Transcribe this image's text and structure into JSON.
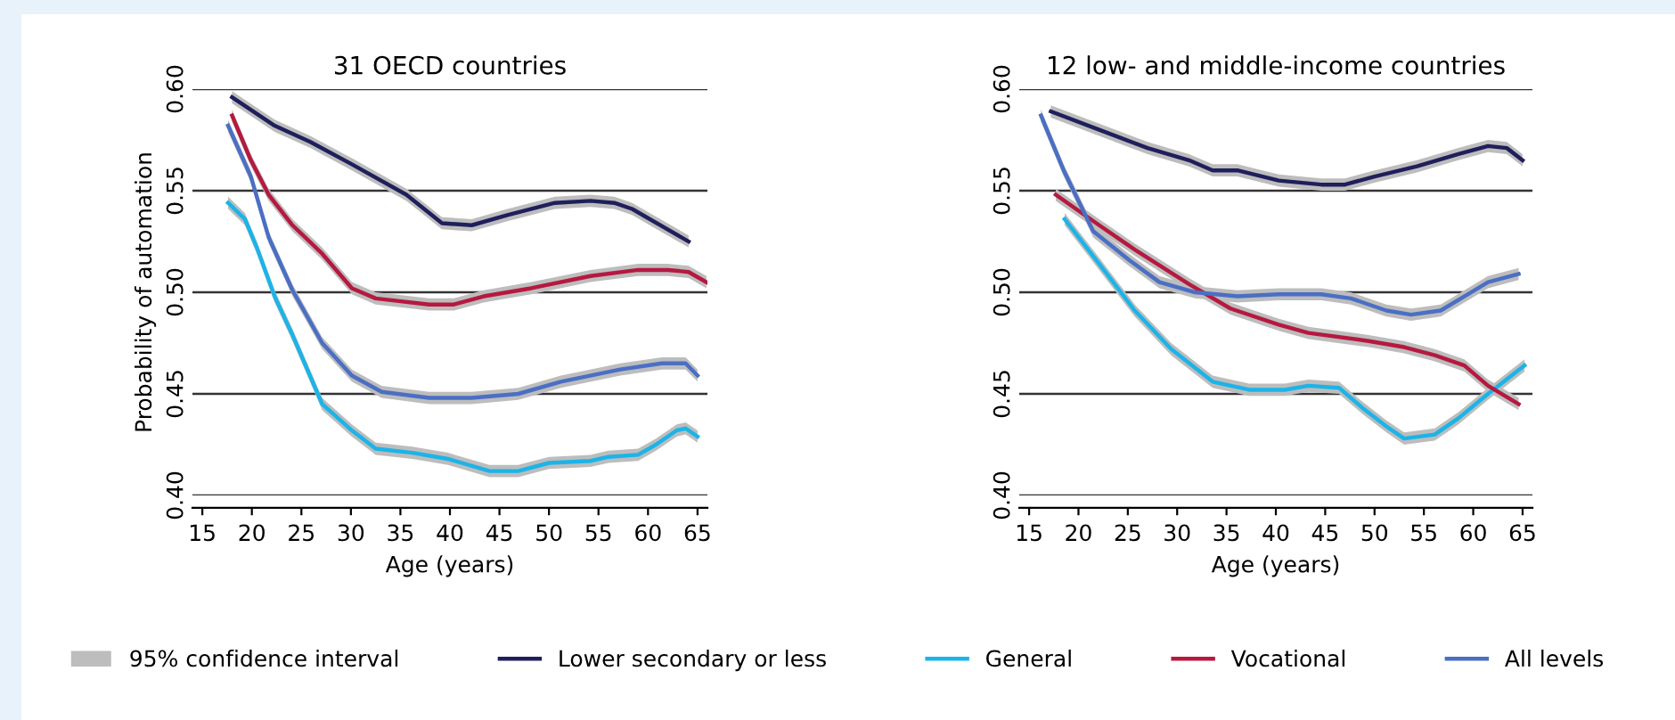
{
  "chart_data": [
    {
      "type": "line",
      "title": "31 OECD countries",
      "xlabel": "Age (years)",
      "ylabel": "Probability of automation",
      "xlim": [
        14,
        66
      ],
      "xticks": [
        15,
        20,
        25,
        30,
        35,
        40,
        45,
        50,
        55,
        60,
        65
      ],
      "ylim": [
        0.4,
        0.6
      ],
      "yticks": [
        {
          "value": 0.4,
          "label": "0.40"
        },
        {
          "value": 0.45,
          "label": "0.45"
        },
        {
          "value": 0.5,
          "label": "0.50"
        },
        {
          "value": 0.55,
          "label": "0.55"
        },
        {
          "value": 0.6,
          "label": "0.60"
        }
      ],
      "grid": "y",
      "legend": "bottom",
      "annotations": [
        "95% confidence interval"
      ],
      "series": [
        {
          "name": "Lower secondary or less",
          "color": "#1f1f5c",
          "x": [
            18.0,
            22.3,
            25.9,
            30.1,
            35.6,
            39.2,
            42.2,
            45.8,
            50.6,
            54.2,
            56.6,
            58.4,
            64.1
          ],
          "values": [
            0.596,
            0.582,
            0.574,
            0.563,
            0.548,
            0.534,
            0.533,
            0.538,
            0.544,
            0.545,
            0.544,
            0.541,
            0.525
          ],
          "lower": [
            0.593,
            0.579,
            0.571,
            0.56,
            0.545,
            0.531,
            0.53,
            0.535,
            0.541,
            0.542,
            0.541,
            0.538,
            0.522
          ],
          "upper": [
            0.599,
            0.585,
            0.577,
            0.566,
            0.551,
            0.537,
            0.536,
            0.541,
            0.547,
            0.548,
            0.547,
            0.544,
            0.528
          ]
        },
        {
          "name": "General",
          "color": "#1bb4e8",
          "x": [
            17.6,
            19.3,
            20.5,
            22.3,
            24.1,
            27.1,
            30.1,
            32.5,
            36.2,
            39.8,
            44.0,
            46.9,
            50.0,
            54.2,
            56.0,
            59.0,
            60.8,
            62.9,
            63.8,
            65.0
          ],
          "values": [
            0.544,
            0.536,
            0.522,
            0.498,
            0.479,
            0.445,
            0.432,
            0.423,
            0.421,
            0.418,
            0.412,
            0.412,
            0.416,
            0.417,
            0.419,
            0.42,
            0.425,
            0.432,
            0.433,
            0.429
          ],
          "lower": [
            0.541,
            0.533,
            0.519,
            0.495,
            0.476,
            0.442,
            0.429,
            0.42,
            0.418,
            0.415,
            0.409,
            0.409,
            0.413,
            0.414,
            0.416,
            0.417,
            0.422,
            0.429,
            0.43,
            0.426
          ],
          "upper": [
            0.547,
            0.539,
            0.525,
            0.501,
            0.482,
            0.448,
            0.435,
            0.426,
            0.424,
            0.421,
            0.415,
            0.415,
            0.419,
            0.42,
            0.422,
            0.423,
            0.428,
            0.435,
            0.436,
            0.432
          ]
        },
        {
          "name": "Vocational",
          "color": "#b5193f",
          "x": [
            18.0,
            19.9,
            21.7,
            24.1,
            27.1,
            30.1,
            32.5,
            37.9,
            40.4,
            43.4,
            48.2,
            54.2,
            59.0,
            62.0,
            64.1,
            65.9
          ],
          "values": [
            0.587,
            0.565,
            0.548,
            0.533,
            0.519,
            0.502,
            0.497,
            0.494,
            0.494,
            0.498,
            0.502,
            0.508,
            0.511,
            0.511,
            0.51,
            0.505
          ],
          "lower": [
            0.584,
            0.562,
            0.545,
            0.53,
            0.516,
            0.499,
            0.494,
            0.491,
            0.491,
            0.495,
            0.499,
            0.505,
            0.508,
            0.508,
            0.507,
            0.502
          ],
          "upper": [
            0.59,
            0.568,
            0.551,
            0.536,
            0.522,
            0.505,
            0.5,
            0.497,
            0.497,
            0.501,
            0.505,
            0.511,
            0.514,
            0.514,
            0.513,
            0.508
          ]
        },
        {
          "name": "All levels",
          "color": "#4a6fc4",
          "x": [
            17.6,
            19.9,
            21.7,
            24.1,
            27.1,
            30.1,
            33.1,
            37.9,
            42.2,
            46.9,
            51.2,
            57.2,
            61.4,
            63.8,
            65.0
          ],
          "values": [
            0.582,
            0.557,
            0.527,
            0.501,
            0.475,
            0.459,
            0.451,
            0.448,
            0.448,
            0.45,
            0.456,
            0.462,
            0.465,
            0.465,
            0.459
          ],
          "lower": [
            0.579,
            0.554,
            0.524,
            0.498,
            0.472,
            0.456,
            0.448,
            0.445,
            0.445,
            0.447,
            0.453,
            0.459,
            0.462,
            0.462,
            0.456
          ],
          "upper": [
            0.585,
            0.56,
            0.53,
            0.504,
            0.478,
            0.462,
            0.454,
            0.451,
            0.451,
            0.453,
            0.459,
            0.465,
            0.468,
            0.468,
            0.462
          ]
        }
      ]
    },
    {
      "type": "line",
      "title": "12 low- and middle-income countries",
      "xlabel": "Age (years)",
      "xlim": [
        14,
        66
      ],
      "xticks": [
        15,
        20,
        25,
        30,
        35,
        40,
        45,
        50,
        55,
        60,
        65
      ],
      "ylim": [
        0.4,
        0.6
      ],
      "yticks": [
        {
          "value": 0.4,
          "label": "0.40"
        },
        {
          "value": 0.45,
          "label": "0.45"
        },
        {
          "value": 0.5,
          "label": "0.50"
        },
        {
          "value": 0.55,
          "label": "0.55"
        },
        {
          "value": 0.6,
          "label": "0.60"
        }
      ],
      "grid": "y",
      "series": [
        {
          "name": "Lower secondary or less",
          "color": "#1f1f5c",
          "x": [
            17.2,
            22.1,
            27.0,
            31.2,
            33.6,
            36.1,
            40.3,
            44.6,
            47.0,
            50.0,
            54.3,
            58.5,
            61.5,
            63.4,
            65.0
          ],
          "values": [
            0.589,
            0.58,
            0.571,
            0.565,
            0.56,
            0.56,
            0.555,
            0.553,
            0.553,
            0.557,
            0.562,
            0.568,
            0.572,
            0.571,
            0.565
          ],
          "lower": [
            0.586,
            0.577,
            0.568,
            0.562,
            0.557,
            0.557,
            0.552,
            0.55,
            0.55,
            0.554,
            0.559,
            0.565,
            0.569,
            0.568,
            0.562
          ],
          "upper": [
            0.592,
            0.583,
            0.574,
            0.568,
            0.563,
            0.563,
            0.558,
            0.556,
            0.556,
            0.56,
            0.565,
            0.571,
            0.575,
            0.574,
            0.568
          ]
        },
        {
          "name": "General",
          "color": "#1bb4e8",
          "x": [
            18.6,
            22.1,
            25.7,
            29.4,
            33.6,
            37.3,
            40.9,
            43.3,
            46.4,
            48.8,
            51.2,
            53.0,
            56.1,
            58.5,
            61.5,
            65.2
          ],
          "values": [
            0.536,
            0.514,
            0.491,
            0.472,
            0.456,
            0.452,
            0.452,
            0.454,
            0.453,
            0.443,
            0.434,
            0.428,
            0.43,
            0.438,
            0.45,
            0.464
          ],
          "lower": [
            0.533,
            0.511,
            0.488,
            0.469,
            0.453,
            0.449,
            0.449,
            0.451,
            0.45,
            0.44,
            0.431,
            0.425,
            0.427,
            0.435,
            0.447,
            0.461
          ],
          "upper": [
            0.539,
            0.517,
            0.494,
            0.475,
            0.459,
            0.455,
            0.455,
            0.457,
            0.456,
            0.446,
            0.437,
            0.431,
            0.433,
            0.441,
            0.453,
            0.467
          ]
        },
        {
          "name": "Vocational",
          "color": "#b5193f",
          "x": [
            17.7,
            22.1,
            25.7,
            31.2,
            35.4,
            40.3,
            43.3,
            49.4,
            53.0,
            56.1,
            59.1,
            61.5,
            64.6
          ],
          "values": [
            0.548,
            0.533,
            0.521,
            0.504,
            0.492,
            0.484,
            0.48,
            0.476,
            0.473,
            0.469,
            0.464,
            0.454,
            0.445
          ],
          "lower": [
            0.545,
            0.53,
            0.518,
            0.501,
            0.489,
            0.481,
            0.477,
            0.473,
            0.47,
            0.466,
            0.461,
            0.451,
            0.442
          ],
          "upper": [
            0.551,
            0.536,
            0.524,
            0.507,
            0.495,
            0.487,
            0.483,
            0.479,
            0.476,
            0.472,
            0.467,
            0.457,
            0.448
          ]
        },
        {
          "name": "All levels",
          "color": "#4a6fc4",
          "x": [
            16.2,
            18.5,
            21.5,
            25.1,
            28.2,
            31.8,
            36.1,
            40.3,
            44.6,
            47.6,
            51.2,
            53.7,
            56.7,
            59.1,
            61.5,
            64.6
          ],
          "values": [
            0.587,
            0.56,
            0.53,
            0.516,
            0.505,
            0.5,
            0.498,
            0.499,
            0.499,
            0.497,
            0.491,
            0.489,
            0.491,
            0.498,
            0.505,
            0.509
          ],
          "lower": [
            0.584,
            0.557,
            0.527,
            0.513,
            0.502,
            0.497,
            0.495,
            0.496,
            0.496,
            0.494,
            0.488,
            0.486,
            0.488,
            0.495,
            0.502,
            0.506
          ],
          "upper": [
            0.59,
            0.563,
            0.533,
            0.519,
            0.508,
            0.503,
            0.501,
            0.502,
            0.502,
            0.5,
            0.494,
            0.492,
            0.494,
            0.501,
            0.508,
            0.512
          ]
        }
      ]
    }
  ]
}
